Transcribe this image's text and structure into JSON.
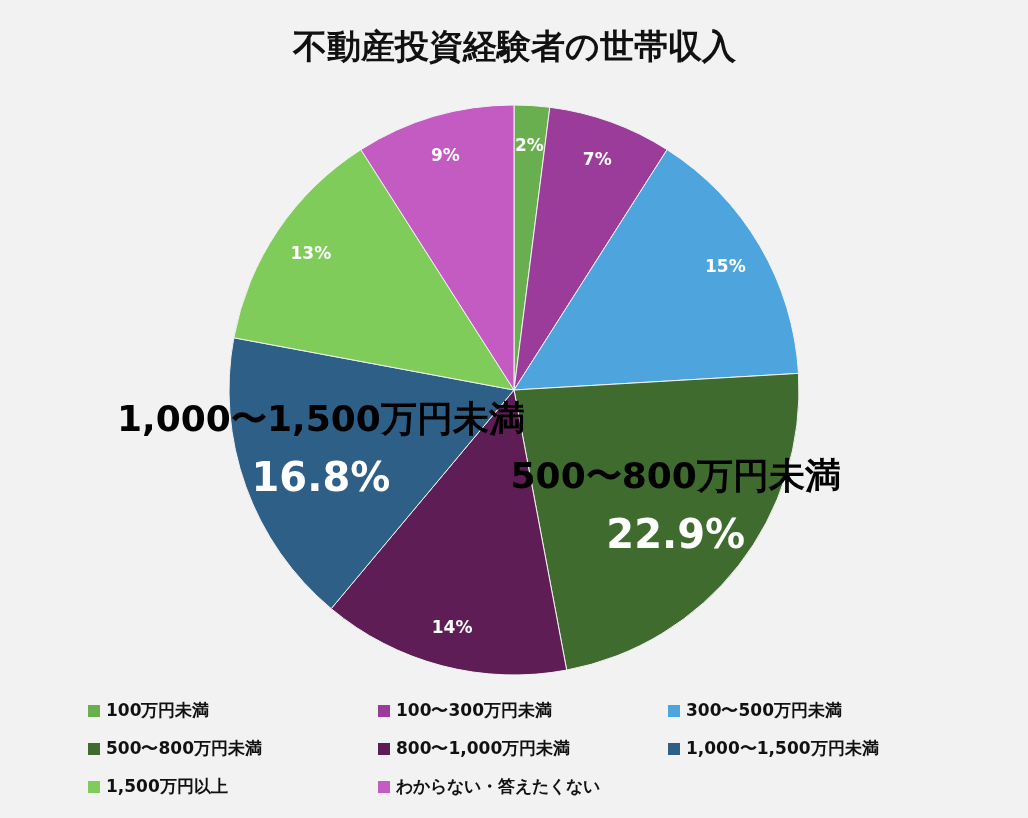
{
  "chart_data": {
    "type": "pie",
    "title": "不動産投資経験者の世帯収入",
    "categories": [
      "100万円未満",
      "100〜300万円未満",
      "300〜500万円未満",
      "500〜800万円未満",
      "800〜1,000万円未満",
      "1,000〜1,500万円未満",
      "1,500万円以上",
      "わからない・答えたくない"
    ],
    "values": [
      2,
      7,
      15,
      22.9,
      14,
      16.8,
      13,
      9
    ],
    "colors": [
      "#6aaf4f",
      "#9b3c9b",
      "#4ea5dd",
      "#3f6b2f",
      "#5e1e55",
      "#2e5f86",
      "#7fcc5a",
      "#c35bc3"
    ],
    "value_labels": [
      "2%",
      "7%",
      "15%",
      "500〜800万円未満\n22.9%",
      "14%",
      "1,000〜1,500万円未満\n16.8%",
      "13%",
      "9%"
    ],
    "legend": "bottom"
  }
}
